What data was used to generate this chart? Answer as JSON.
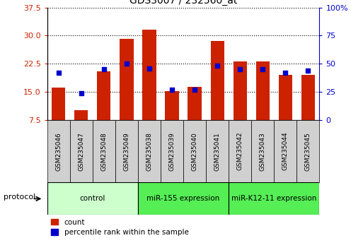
{
  "title": "GDS3007 / 232560_at",
  "samples": [
    "GSM235046",
    "GSM235047",
    "GSM235048",
    "GSM235049",
    "GSM235038",
    "GSM235039",
    "GSM235040",
    "GSM235041",
    "GSM235042",
    "GSM235043",
    "GSM235044",
    "GSM235045"
  ],
  "count_values": [
    16.2,
    10.2,
    20.5,
    29.2,
    31.5,
    15.2,
    16.4,
    28.5,
    23.2,
    23.2,
    19.5,
    19.5
  ],
  "percentile_values": [
    42,
    24,
    45,
    50,
    46,
    27,
    27,
    48,
    45,
    45,
    42,
    44
  ],
  "groups": [
    {
      "label": "control",
      "start": 0,
      "end": 4,
      "color": "#ccffcc"
    },
    {
      "label": "miR-155 expression",
      "start": 4,
      "end": 8,
      "color": "#55ee55"
    },
    {
      "label": "miR-K12-11 expression",
      "start": 8,
      "end": 12,
      "color": "#55ee55"
    }
  ],
  "ylim_left": [
    7.5,
    37.5
  ],
  "ylim_right": [
    0,
    100
  ],
  "yticks_left": [
    7.5,
    15.0,
    22.5,
    30.0,
    37.5
  ],
  "yticks_right": [
    0,
    25,
    50,
    75,
    100
  ],
  "bar_color": "#cc2200",
  "dot_color": "#0000cc",
  "background_color": "#ffffff",
  "protocol_label": "protocol",
  "legend_count": "count",
  "legend_percentile": "percentile rank within the sample"
}
